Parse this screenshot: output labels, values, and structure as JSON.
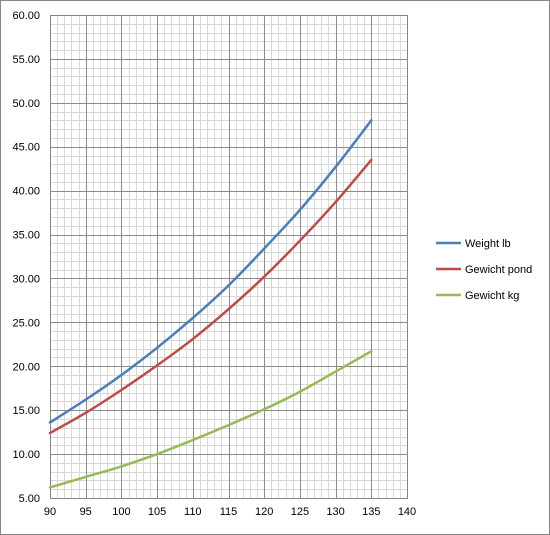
{
  "chart_data": {
    "type": "line",
    "title": "",
    "xlabel": "",
    "ylabel": "",
    "xlim": [
      90,
      140
    ],
    "ylim": [
      5,
      60
    ],
    "x_ticks": [
      90,
      95,
      100,
      105,
      110,
      115,
      120,
      125,
      130,
      135,
      140
    ],
    "x_tick_labels": [
      "90",
      "95",
      "100",
      "105",
      "110",
      "115",
      "120",
      "125",
      "130",
      "135",
      "140"
    ],
    "y_ticks": [
      5,
      10,
      15,
      20,
      25,
      30,
      35,
      40,
      45,
      50,
      55,
      60
    ],
    "y_tick_labels": [
      "5.00",
      "10.00",
      "15.00",
      "20.00",
      "25.00",
      "30.00",
      "35.00",
      "40.00",
      "45.00",
      "50.00",
      "55.00",
      "60.00"
    ],
    "x_minor_step": 1,
    "y_minor_step": 1,
    "grid": true,
    "legend_position": "right",
    "x": [
      90,
      95,
      100,
      105,
      110,
      115,
      120,
      125,
      130,
      135
    ],
    "series": [
      {
        "name": "Weight lb",
        "color": "#4a7ebb",
        "values": [
          13.6,
          16.2,
          19.0,
          22.1,
          25.5,
          29.2,
          33.4,
          37.8,
          42.7,
          48.0
        ]
      },
      {
        "name": "Gewicht pond",
        "color": "#be4b48",
        "values": [
          12.4,
          14.7,
          17.3,
          20.1,
          23.1,
          26.5,
          30.2,
          34.3,
          38.7,
          43.5
        ]
      },
      {
        "name": "Gewicht kg",
        "color": "#98b954",
        "values": [
          6.2,
          7.4,
          8.6,
          10.0,
          11.6,
          13.3,
          15.1,
          17.1,
          19.4,
          21.7
        ]
      }
    ]
  }
}
